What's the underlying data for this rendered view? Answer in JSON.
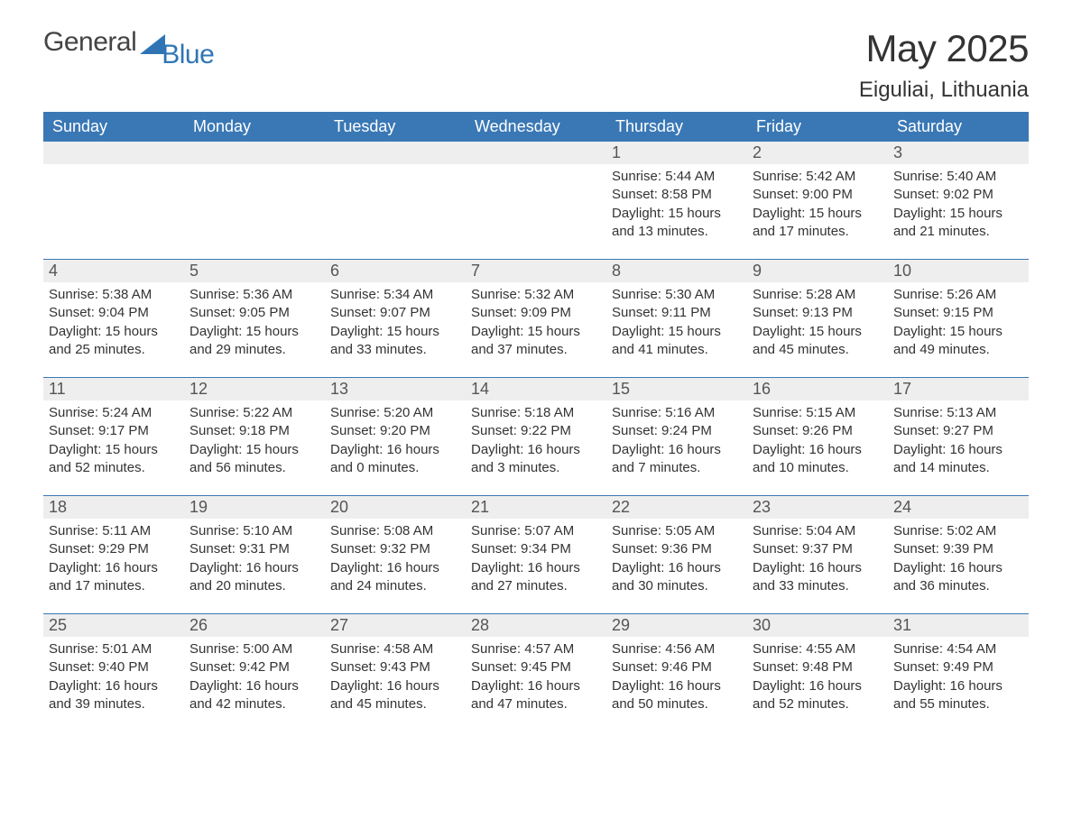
{
  "logo": {
    "text_general": "General",
    "text_blue": "Blue",
    "accent_color": "#2f75b5"
  },
  "title": "May 2025",
  "location": "Eiguliai, Lithuania",
  "colors": {
    "header_bg": "#3a78b5",
    "header_text": "#ffffff",
    "daynum_bg": "#eeeeee",
    "body_text": "#333333",
    "week_border": "#3a78b5"
  },
  "day_headers": [
    "Sunday",
    "Monday",
    "Tuesday",
    "Wednesday",
    "Thursday",
    "Friday",
    "Saturday"
  ],
  "weeks": [
    [
      {
        "n": "",
        "sunrise": "",
        "sunset": "",
        "daylight": ""
      },
      {
        "n": "",
        "sunrise": "",
        "sunset": "",
        "daylight": ""
      },
      {
        "n": "",
        "sunrise": "",
        "sunset": "",
        "daylight": ""
      },
      {
        "n": "",
        "sunrise": "",
        "sunset": "",
        "daylight": ""
      },
      {
        "n": "1",
        "sunrise": "Sunrise: 5:44 AM",
        "sunset": "Sunset: 8:58 PM",
        "daylight": "Daylight: 15 hours and 13 minutes."
      },
      {
        "n": "2",
        "sunrise": "Sunrise: 5:42 AM",
        "sunset": "Sunset: 9:00 PM",
        "daylight": "Daylight: 15 hours and 17 minutes."
      },
      {
        "n": "3",
        "sunrise": "Sunrise: 5:40 AM",
        "sunset": "Sunset: 9:02 PM",
        "daylight": "Daylight: 15 hours and 21 minutes."
      }
    ],
    [
      {
        "n": "4",
        "sunrise": "Sunrise: 5:38 AM",
        "sunset": "Sunset: 9:04 PM",
        "daylight": "Daylight: 15 hours and 25 minutes."
      },
      {
        "n": "5",
        "sunrise": "Sunrise: 5:36 AM",
        "sunset": "Sunset: 9:05 PM",
        "daylight": "Daylight: 15 hours and 29 minutes."
      },
      {
        "n": "6",
        "sunrise": "Sunrise: 5:34 AM",
        "sunset": "Sunset: 9:07 PM",
        "daylight": "Daylight: 15 hours and 33 minutes."
      },
      {
        "n": "7",
        "sunrise": "Sunrise: 5:32 AM",
        "sunset": "Sunset: 9:09 PM",
        "daylight": "Daylight: 15 hours and 37 minutes."
      },
      {
        "n": "8",
        "sunrise": "Sunrise: 5:30 AM",
        "sunset": "Sunset: 9:11 PM",
        "daylight": "Daylight: 15 hours and 41 minutes."
      },
      {
        "n": "9",
        "sunrise": "Sunrise: 5:28 AM",
        "sunset": "Sunset: 9:13 PM",
        "daylight": "Daylight: 15 hours and 45 minutes."
      },
      {
        "n": "10",
        "sunrise": "Sunrise: 5:26 AM",
        "sunset": "Sunset: 9:15 PM",
        "daylight": "Daylight: 15 hours and 49 minutes."
      }
    ],
    [
      {
        "n": "11",
        "sunrise": "Sunrise: 5:24 AM",
        "sunset": "Sunset: 9:17 PM",
        "daylight": "Daylight: 15 hours and 52 minutes."
      },
      {
        "n": "12",
        "sunrise": "Sunrise: 5:22 AM",
        "sunset": "Sunset: 9:18 PM",
        "daylight": "Daylight: 15 hours and 56 minutes."
      },
      {
        "n": "13",
        "sunrise": "Sunrise: 5:20 AM",
        "sunset": "Sunset: 9:20 PM",
        "daylight": "Daylight: 16 hours and 0 minutes."
      },
      {
        "n": "14",
        "sunrise": "Sunrise: 5:18 AM",
        "sunset": "Sunset: 9:22 PM",
        "daylight": "Daylight: 16 hours and 3 minutes."
      },
      {
        "n": "15",
        "sunrise": "Sunrise: 5:16 AM",
        "sunset": "Sunset: 9:24 PM",
        "daylight": "Daylight: 16 hours and 7 minutes."
      },
      {
        "n": "16",
        "sunrise": "Sunrise: 5:15 AM",
        "sunset": "Sunset: 9:26 PM",
        "daylight": "Daylight: 16 hours and 10 minutes."
      },
      {
        "n": "17",
        "sunrise": "Sunrise: 5:13 AM",
        "sunset": "Sunset: 9:27 PM",
        "daylight": "Daylight: 16 hours and 14 minutes."
      }
    ],
    [
      {
        "n": "18",
        "sunrise": "Sunrise: 5:11 AM",
        "sunset": "Sunset: 9:29 PM",
        "daylight": "Daylight: 16 hours and 17 minutes."
      },
      {
        "n": "19",
        "sunrise": "Sunrise: 5:10 AM",
        "sunset": "Sunset: 9:31 PM",
        "daylight": "Daylight: 16 hours and 20 minutes."
      },
      {
        "n": "20",
        "sunrise": "Sunrise: 5:08 AM",
        "sunset": "Sunset: 9:32 PM",
        "daylight": "Daylight: 16 hours and 24 minutes."
      },
      {
        "n": "21",
        "sunrise": "Sunrise: 5:07 AM",
        "sunset": "Sunset: 9:34 PM",
        "daylight": "Daylight: 16 hours and 27 minutes."
      },
      {
        "n": "22",
        "sunrise": "Sunrise: 5:05 AM",
        "sunset": "Sunset: 9:36 PM",
        "daylight": "Daylight: 16 hours and 30 minutes."
      },
      {
        "n": "23",
        "sunrise": "Sunrise: 5:04 AM",
        "sunset": "Sunset: 9:37 PM",
        "daylight": "Daylight: 16 hours and 33 minutes."
      },
      {
        "n": "24",
        "sunrise": "Sunrise: 5:02 AM",
        "sunset": "Sunset: 9:39 PM",
        "daylight": "Daylight: 16 hours and 36 minutes."
      }
    ],
    [
      {
        "n": "25",
        "sunrise": "Sunrise: 5:01 AM",
        "sunset": "Sunset: 9:40 PM",
        "daylight": "Daylight: 16 hours and 39 minutes."
      },
      {
        "n": "26",
        "sunrise": "Sunrise: 5:00 AM",
        "sunset": "Sunset: 9:42 PM",
        "daylight": "Daylight: 16 hours and 42 minutes."
      },
      {
        "n": "27",
        "sunrise": "Sunrise: 4:58 AM",
        "sunset": "Sunset: 9:43 PM",
        "daylight": "Daylight: 16 hours and 45 minutes."
      },
      {
        "n": "28",
        "sunrise": "Sunrise: 4:57 AM",
        "sunset": "Sunset: 9:45 PM",
        "daylight": "Daylight: 16 hours and 47 minutes."
      },
      {
        "n": "29",
        "sunrise": "Sunrise: 4:56 AM",
        "sunset": "Sunset: 9:46 PM",
        "daylight": "Daylight: 16 hours and 50 minutes."
      },
      {
        "n": "30",
        "sunrise": "Sunrise: 4:55 AM",
        "sunset": "Sunset: 9:48 PM",
        "daylight": "Daylight: 16 hours and 52 minutes."
      },
      {
        "n": "31",
        "sunrise": "Sunrise: 4:54 AM",
        "sunset": "Sunset: 9:49 PM",
        "daylight": "Daylight: 16 hours and 55 minutes."
      }
    ]
  ]
}
